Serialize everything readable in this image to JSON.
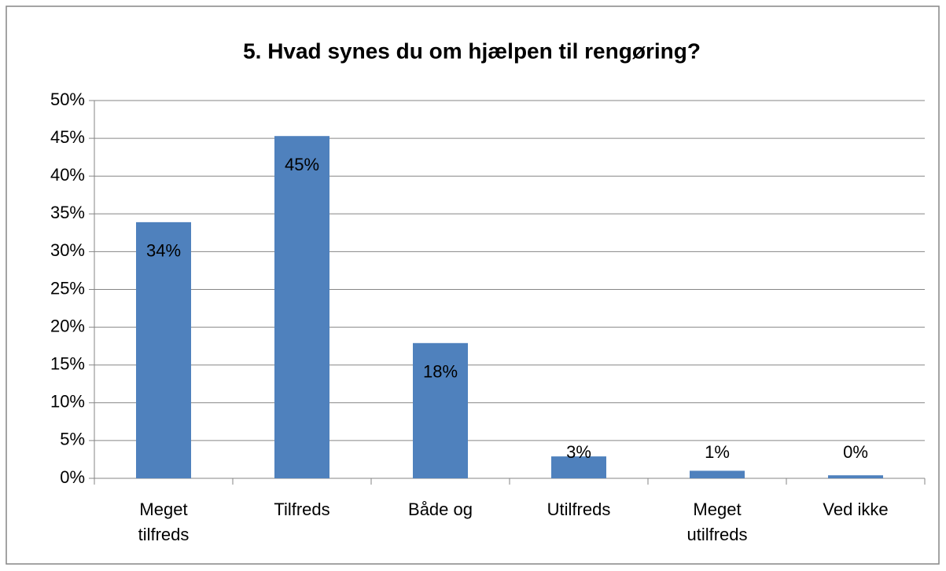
{
  "chart_data": {
    "type": "bar",
    "title": "5. Hvad synes du om hjælpen til rengøring?",
    "categories": [
      "Meget tilfreds",
      "Tilfreds",
      "Både og",
      "Utilfreds",
      "Meget utilfreds",
      "Ved ikke"
    ],
    "values": [
      33.9,
      45.3,
      17.9,
      2.9,
      1.0,
      0.4
    ],
    "value_labels": [
      "34%",
      "45%",
      "18%",
      "3%",
      "1%",
      "0%"
    ],
    "color": "#4f81bd",
    "ylim": [
      0,
      50
    ],
    "yticks": [
      {
        "value": 0,
        "label": "0%"
      },
      {
        "value": 5,
        "label": "5%"
      },
      {
        "value": 10,
        "label": "10%"
      },
      {
        "value": 15,
        "label": "15%"
      },
      {
        "value": 20,
        "label": "20%"
      },
      {
        "value": 25,
        "label": "25%"
      },
      {
        "value": 30,
        "label": "30%"
      },
      {
        "value": 35,
        "label": "35%"
      },
      {
        "value": 40,
        "label": "40%"
      },
      {
        "value": 45,
        "label": "45%"
      },
      {
        "value": 50,
        "label": "50%"
      }
    ],
    "grid": true
  }
}
